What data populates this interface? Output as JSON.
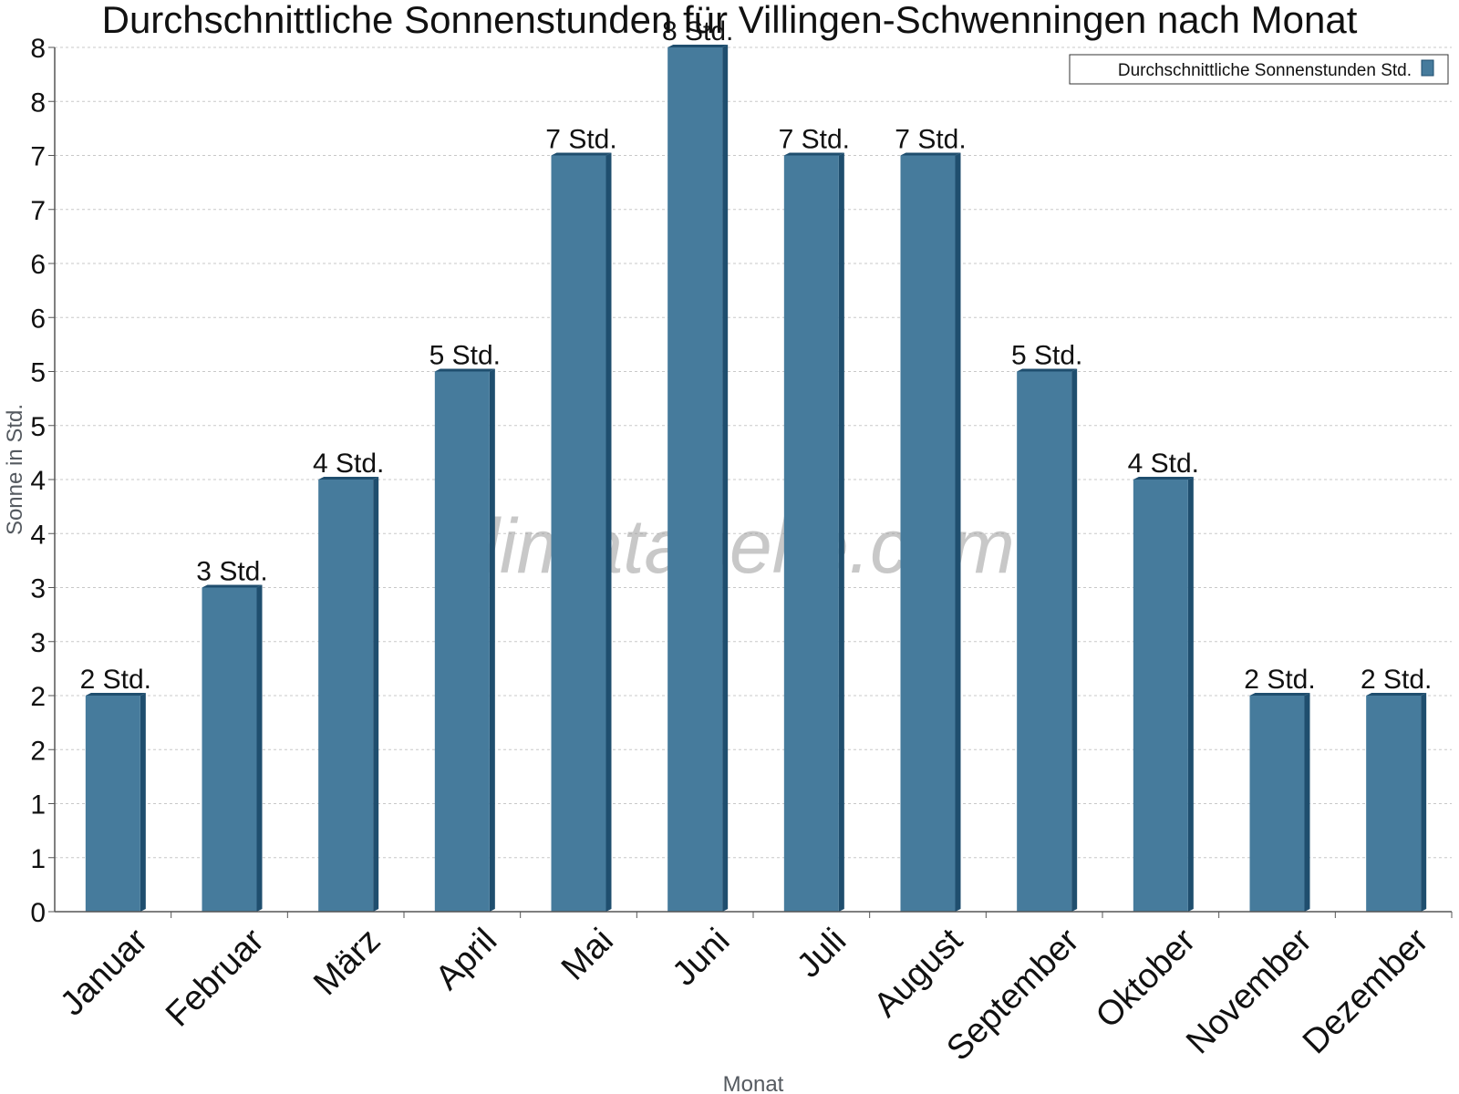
{
  "chart_data": {
    "type": "bar",
    "title": "Durchschnittliche Sonnenstunden für Villingen-Schwenningen nach Monat",
    "xlabel": "Monat",
    "ylabel": "Sonne in Std.",
    "categories": [
      "Januar",
      "Februar",
      "März",
      "April",
      "Mai",
      "Juni",
      "Juli",
      "August",
      "September",
      "Oktober",
      "November",
      "Dezember"
    ],
    "series": [
      {
        "name": "Durchschnittliche Sonnenstunden Std.",
        "values": [
          2,
          3,
          4,
          5,
          7,
          8,
          7,
          7,
          5,
          4,
          2,
          2
        ],
        "labels": [
          "2 Std.",
          "3 Std.",
          "4 Std.",
          "5 Std.",
          "7 Std.",
          "8 Std.",
          "7 Std.",
          "7 Std.",
          "5 Std.",
          "4 Std.",
          "2 Std.",
          "2 Std."
        ],
        "color": "#467b9c"
      }
    ],
    "ylim": [
      0,
      8
    ],
    "y_tick_labels": [
      "0",
      "1",
      "1",
      "2",
      "2",
      "3",
      "3",
      "4",
      "4",
      "5",
      "5",
      "6",
      "6",
      "7",
      "7",
      "8",
      "8"
    ],
    "grid": true,
    "legend_position": "top-right",
    "bar_side_color": "#1f4e6e",
    "watermark": "klimatabelle.com"
  }
}
